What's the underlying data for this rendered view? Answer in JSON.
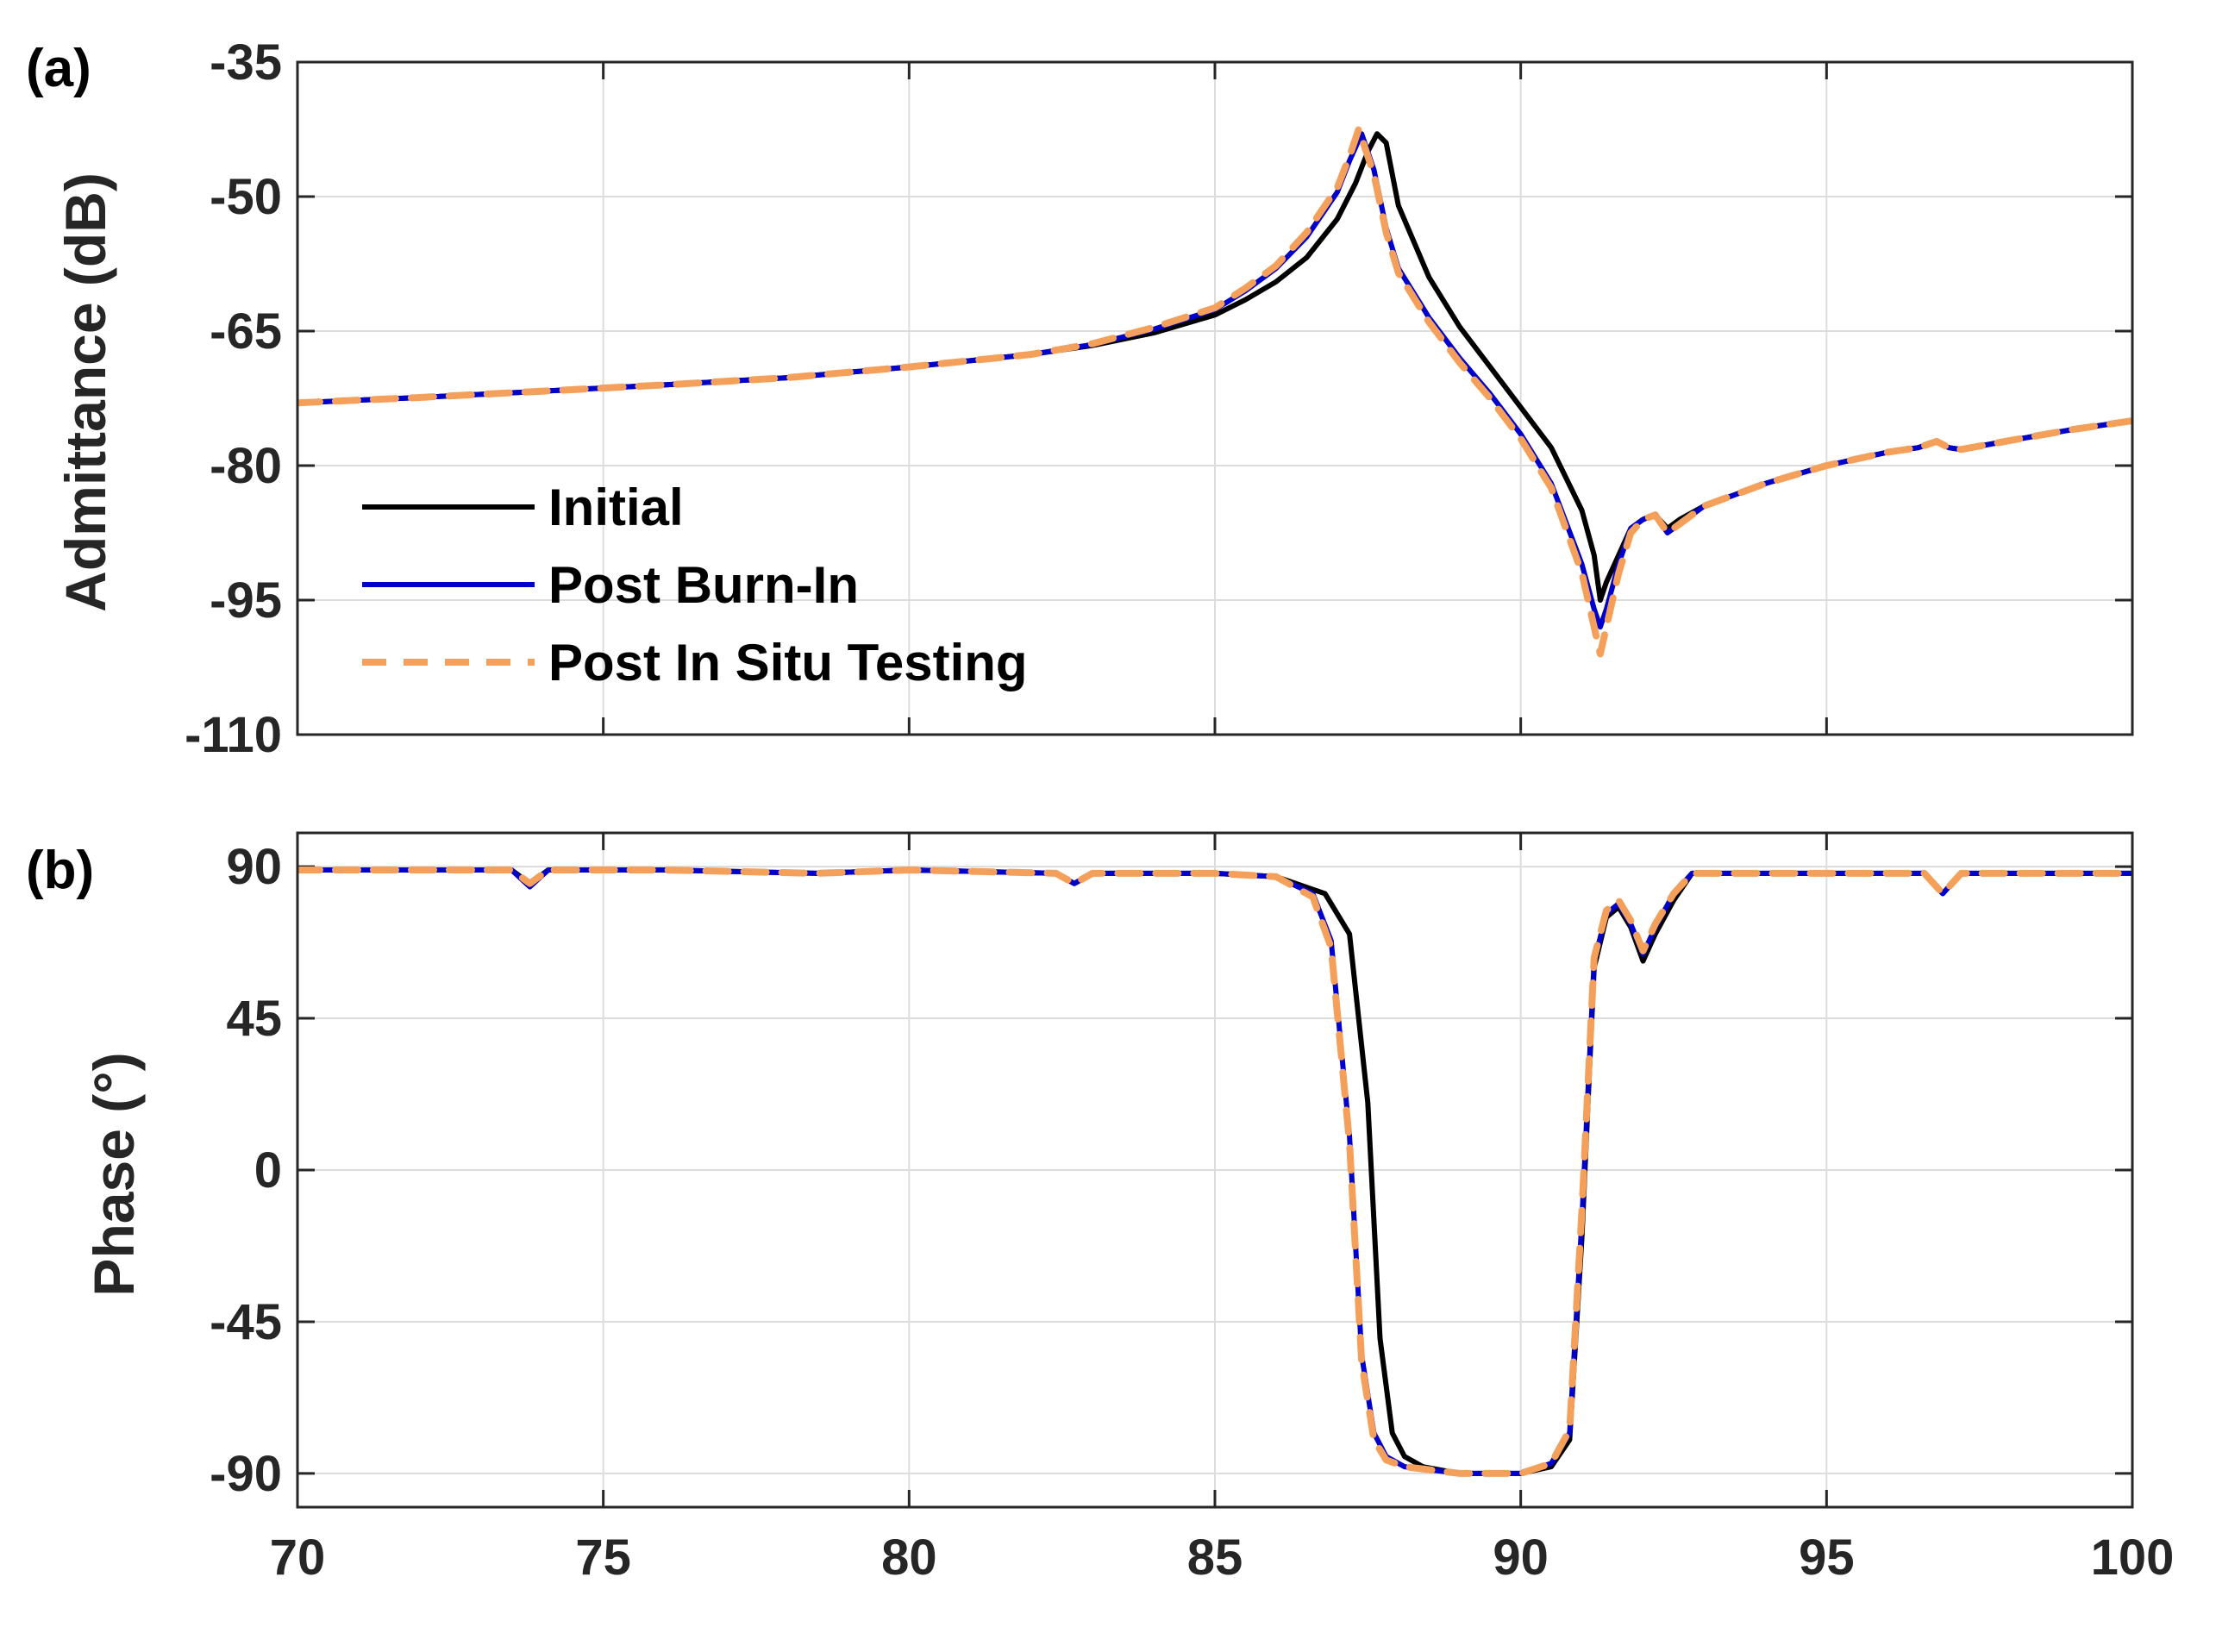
{
  "chart_data": [
    {
      "type": "line",
      "panel_label": "(a)",
      "ylabel": "Admittance (dB)",
      "xlabel": "",
      "xlim": [
        70,
        100
      ],
      "ylim": [
        -110,
        -35
      ],
      "yticks": [
        "-35",
        "-50",
        "-65",
        "-80",
        "-95",
        "-110"
      ],
      "grid": true,
      "legend_position": "left-lower",
      "series": [
        {
          "name": "Initial",
          "color": "#000000",
          "style": "solid",
          "x": [
            70,
            72,
            74,
            76,
            78,
            80,
            82,
            83,
            84,
            85,
            85.5,
            86,
            86.5,
            87,
            87.3,
            87.5,
            87.65,
            87.8,
            88,
            88.5,
            89,
            89.5,
            90,
            90.5,
            91,
            91.2,
            91.3,
            91.4,
            91.6,
            91.8,
            92,
            92.2,
            92.4,
            92.6,
            93,
            94,
            95,
            96,
            96.5,
            96.8,
            97,
            97.2,
            98,
            99,
            100
          ],
          "y": [
            -73,
            -72.4,
            -71.7,
            -71,
            -70.2,
            -69,
            -67.6,
            -66.6,
            -65.2,
            -63.2,
            -61.5,
            -59.5,
            -56.8,
            -52.5,
            -48.5,
            -45,
            -43,
            -44,
            -51,
            -59,
            -64.5,
            -69,
            -73.5,
            -78,
            -85,
            -90,
            -95,
            -93,
            -90,
            -87,
            -86,
            -85.5,
            -87,
            -86,
            -84.5,
            -82,
            -80,
            -78.5,
            -78,
            -77.3,
            -78,
            -78.2,
            -77.2,
            -76,
            -75
          ]
        },
        {
          "name": "Post Burn-In",
          "color": "#0000cc",
          "style": "solid",
          "x": [
            70,
            72,
            74,
            76,
            78,
            80,
            82,
            83,
            84,
            85,
            85.5,
            86,
            86.5,
            87,
            87.2,
            87.4,
            87.6,
            87.8,
            88,
            88.5,
            89,
            89.5,
            90,
            90.5,
            91,
            91.2,
            91.3,
            91.4,
            91.6,
            91.8,
            92,
            92.2,
            92.4,
            92.6,
            93,
            94,
            95,
            96,
            96.5,
            96.8,
            97,
            97.2,
            98,
            99,
            100
          ],
          "y": [
            -73,
            -72.4,
            -71.7,
            -71,
            -70.2,
            -69,
            -67.6,
            -66.5,
            -64.8,
            -62.6,
            -60.5,
            -58,
            -54.5,
            -49.5,
            -46,
            -43,
            -47,
            -53.5,
            -58,
            -63.5,
            -68,
            -72,
            -76.5,
            -82,
            -91,
            -96,
            -98,
            -96,
            -91,
            -87,
            -86,
            -85.5,
            -87.5,
            -86.5,
            -84.5,
            -82,
            -80,
            -78.5,
            -78,
            -77.3,
            -78,
            -78.2,
            -77.2,
            -76,
            -75
          ]
        },
        {
          "name": "Post In Situ Testing",
          "color": "#f5a05a",
          "style": "dashed",
          "x": [
            70,
            72,
            74,
            76,
            78,
            80,
            82,
            83,
            84,
            85,
            85.5,
            86,
            86.5,
            87,
            87.2,
            87.35,
            87.6,
            87.8,
            88,
            88.5,
            89,
            89.5,
            90,
            90.5,
            91,
            91.2,
            91.3,
            91.4,
            91.6,
            91.8,
            92,
            92.2,
            92.4,
            92.6,
            93,
            94,
            95,
            96,
            96.5,
            96.8,
            97,
            97.2,
            98,
            99,
            100
          ],
          "y": [
            -73,
            -72.4,
            -71.7,
            -71,
            -70.2,
            -69,
            -67.6,
            -66.4,
            -64.6,
            -62.4,
            -60.2,
            -57.7,
            -54,
            -49,
            -45.5,
            -42.5,
            -47.5,
            -54,
            -58.5,
            -64,
            -68.5,
            -72.5,
            -77,
            -82.5,
            -92,
            -98,
            -101,
            -98,
            -92,
            -87.5,
            -86,
            -85.5,
            -87.5,
            -86.5,
            -84.5,
            -82,
            -80,
            -78.5,
            -78,
            -77.3,
            -78,
            -78.2,
            -77.2,
            -76,
            -75
          ]
        }
      ]
    },
    {
      "type": "line",
      "panel_label": "(b)",
      "ylabel": "Phase (°)",
      "xlabel": "",
      "xlim": [
        70,
        100
      ],
      "ylim": [
        -100,
        100
      ],
      "yticks": [
        "90",
        "45",
        "0",
        "-45",
        "-90"
      ],
      "xticks": [
        "70",
        "75",
        "80",
        "85",
        "90",
        "95",
        "100"
      ],
      "grid": true,
      "series": [
        {
          "name": "Initial",
          "color": "#000000",
          "style": "solid",
          "x": [
            70,
            73.5,
            73.8,
            74.1,
            76,
            78.5,
            80,
            82.4,
            82.7,
            83,
            85,
            86,
            86.8,
            87.2,
            87.5,
            87.7,
            87.9,
            88.1,
            88.4,
            89,
            90,
            90.5,
            90.8,
            91.0,
            91.2,
            91.4,
            91.6,
            91.8,
            92.0,
            92.2,
            92.5,
            92.8,
            93.5,
            96.6,
            96.9,
            97.2,
            100
          ],
          "y": [
            89,
            89,
            85,
            89,
            89,
            88,
            89,
            88,
            85,
            88,
            88,
            87,
            82,
            70,
            20,
            -50,
            -78,
            -85,
            -88,
            -90,
            -90,
            -88,
            -80,
            -20,
            60,
            75,
            78,
            72,
            62,
            70,
            80,
            88,
            88,
            88,
            82,
            88,
            88
          ]
        },
        {
          "name": "Post Burn-In",
          "color": "#0000cc",
          "style": "solid",
          "x": [
            70,
            73.5,
            73.8,
            74.1,
            76,
            78.5,
            80,
            82.4,
            82.7,
            83,
            85,
            86,
            86.6,
            86.9,
            87.2,
            87.4,
            87.6,
            87.8,
            88.1,
            89,
            90,
            90.5,
            90.8,
            91.0,
            91.2,
            91.4,
            91.6,
            91.8,
            92.0,
            92.2,
            92.5,
            92.8,
            93.5,
            96.6,
            96.9,
            97.2,
            100
          ],
          "y": [
            89,
            89,
            84,
            89,
            89,
            88,
            89,
            88,
            85,
            88,
            88,
            87,
            82,
            68,
            10,
            -55,
            -78,
            -85,
            -88,
            -90,
            -90,
            -87,
            -78,
            -15,
            62,
            76,
            79,
            73,
            64,
            72,
            82,
            88,
            88,
            88,
            82,
            88,
            88
          ]
        },
        {
          "name": "Post In Situ Testing",
          "color": "#f5a05a",
          "style": "dashed",
          "x": [
            70,
            73.5,
            73.8,
            74.1,
            76,
            78.5,
            80,
            82.4,
            82.7,
            83,
            85,
            86,
            86.6,
            86.9,
            87.2,
            87.4,
            87.6,
            87.8,
            88.1,
            89,
            90,
            90.5,
            90.8,
            91.0,
            91.2,
            91.4,
            91.6,
            91.8,
            92.0,
            92.2,
            92.5,
            92.8,
            93.5,
            96.6,
            96.9,
            97.2,
            100
          ],
          "y": [
            89,
            89,
            85,
            89,
            89,
            88,
            89,
            88,
            85,
            88,
            88,
            87,
            81,
            66,
            8,
            -57,
            -80,
            -86,
            -88,
            -90,
            -90,
            -87,
            -77,
            -12,
            63,
            77,
            80,
            74,
            65,
            73,
            82,
            88,
            88,
            88,
            82,
            88,
            88
          ]
        }
      ]
    }
  ]
}
